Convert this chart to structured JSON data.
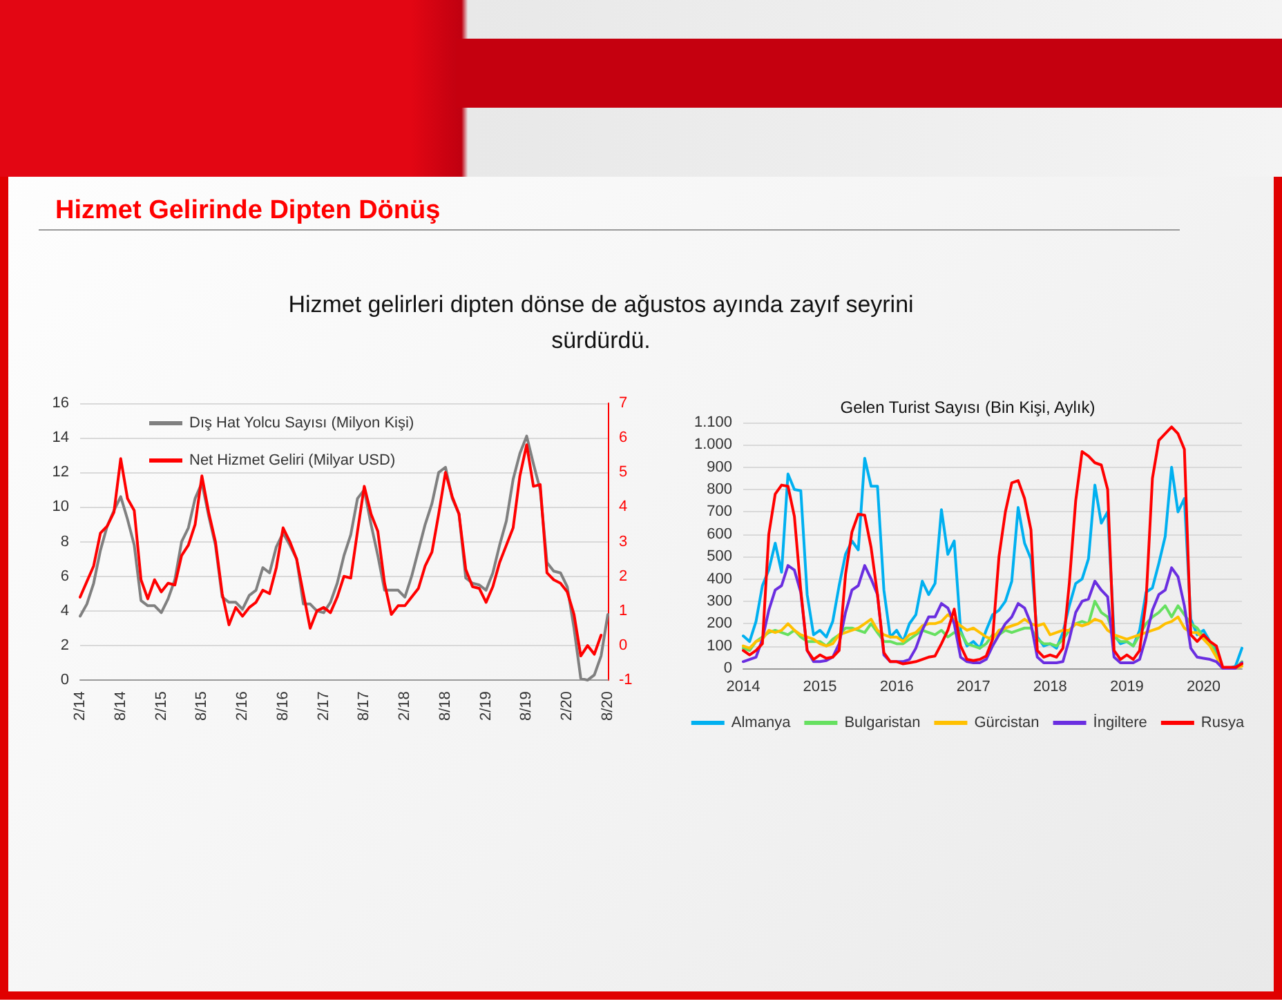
{
  "chart_data": [
    {
      "type": "line",
      "annotations": [
        "Hizmet Gelirinde Dipten Dönüş",
        "Hizmet gelirleri dipten dönse de ağustos ayında zayıf seyrini sürdürdü."
      ],
      "categories": [
        "2/14",
        null,
        null,
        null,
        null,
        null,
        "8/14",
        null,
        null,
        null,
        null,
        null,
        "2/15",
        null,
        null,
        null,
        null,
        null,
        "8/15",
        null,
        null,
        null,
        null,
        null,
        "2/16",
        null,
        null,
        null,
        null,
        null,
        "8/16",
        null,
        null,
        null,
        null,
        null,
        "2/17",
        null,
        null,
        null,
        null,
        null,
        "8/17",
        null,
        null,
        null,
        null,
        null,
        "2/18",
        null,
        null,
        null,
        null,
        null,
        "8/18",
        null,
        null,
        null,
        null,
        null,
        "2/19",
        null,
        null,
        null,
        null,
        null,
        "8/19",
        null,
        null,
        null,
        null,
        null,
        "2/20",
        null,
        null,
        null,
        null,
        null,
        "8/20"
      ],
      "series": [
        {
          "name": "Dış Hat Yolcu Sayısı (Milyon Kişi)",
          "color": "#808080",
          "values": [
            3.7,
            4.4,
            5.6,
            7.5,
            8.9,
            9.8,
            10.6,
            9.3,
            7.8,
            4.6,
            4.3,
            4.3,
            3.9,
            4.7,
            5.8,
            8.0,
            8.8,
            10.5,
            11.4,
            9.5,
            7.8,
            4.8,
            4.5,
            4.5,
            4.1,
            4.9,
            5.2,
            6.5,
            6.2,
            7.7,
            8.5,
            7.8,
            7.0,
            4.4,
            4.4,
            4.0,
            3.9,
            4.5,
            5.6,
            7.2,
            8.4,
            10.5,
            11.0,
            9.0,
            7.2,
            5.2,
            5.2,
            5.2,
            4.8,
            6.0,
            7.5,
            9.0,
            10.2,
            12.0,
            12.3,
            10.5,
            9.6,
            5.9,
            5.6,
            5.5,
            5.2,
            6.2,
            7.8,
            9.2,
            11.6,
            13.1,
            14.1,
            12.5,
            11.0,
            6.8,
            6.3,
            6.2,
            5.4,
            3.0,
            0.1,
            0.0,
            0.3,
            1.4,
            3.8
          ]
        },
        {
          "name": "Net Hizmet Geliri (Milyar USD)",
          "color": "#ff0000",
          "axis": "y2",
          "values": [
            1.4,
            1.85,
            2.3,
            3.25,
            3.45,
            3.85,
            5.4,
            4.25,
            3.9,
            1.9,
            1.35,
            1.9,
            1.55,
            1.8,
            1.75,
            2.6,
            2.9,
            3.5,
            4.9,
            3.85,
            3.0,
            1.5,
            0.6,
            1.1,
            0.85,
            1.1,
            1.25,
            1.6,
            1.5,
            2.25,
            3.4,
            3.0,
            2.5,
            1.5,
            0.5,
            1.0,
            1.1,
            0.95,
            1.4,
            2.0,
            1.95,
            3.3,
            4.6,
            3.8,
            3.3,
            1.8,
            0.9,
            1.15,
            1.15,
            1.4,
            1.65,
            2.3,
            2.7,
            3.8,
            5.0,
            4.3,
            3.8,
            2.2,
            1.7,
            1.65,
            1.25,
            1.7,
            2.4,
            2.9,
            3.4,
            4.9,
            5.8,
            4.6,
            4.65,
            2.1,
            1.9,
            1.8,
            1.55,
            0.9,
            -0.3,
            0.0,
            -0.25,
            0.3,
            null
          ]
        }
      ],
      "ylim": [
        0,
        16
      ],
      "yticks": [
        0,
        2,
        4,
        6,
        8,
        10,
        12,
        14,
        16
      ],
      "y2lim": [
        -1,
        7
      ],
      "y2ticks": [
        -1,
        0,
        1,
        2,
        3,
        4,
        5,
        6,
        7
      ],
      "grid": "y",
      "legend": "top left",
      "marker": "none",
      "line_style": "solid"
    },
    {
      "type": "line",
      "title": "Gelen Turist Sayısı (Bin Kişi, Aylık)",
      "categories": [
        "2014",
        null,
        null,
        null,
        null,
        null,
        null,
        null,
        null,
        null,
        null,
        null,
        "2015",
        null,
        null,
        null,
        null,
        null,
        null,
        null,
        null,
        null,
        null,
        null,
        "2016",
        null,
        null,
        null,
        null,
        null,
        null,
        null,
        null,
        null,
        null,
        null,
        "2017",
        null,
        null,
        null,
        null,
        null,
        null,
        null,
        null,
        null,
        null,
        null,
        "2018",
        null,
        null,
        null,
        null,
        null,
        null,
        null,
        null,
        null,
        null,
        null,
        "2019",
        null,
        null,
        null,
        null,
        null,
        null,
        null,
        null,
        null,
        null,
        null,
        "2020",
        null,
        null,
        null,
        null,
        null,
        null
      ],
      "series": [
        {
          "name": "Almanya",
          "color": "#00b0f0",
          "values": [
            145,
            120,
            210,
            370,
            440,
            560,
            430,
            870,
            800,
            795,
            330,
            150,
            170,
            140,
            210,
            370,
            510,
            570,
            530,
            940,
            815,
            815,
            350,
            140,
            170,
            120,
            200,
            240,
            390,
            330,
            380,
            710,
            510,
            570,
            170,
            100,
            120,
            90,
            170,
            240,
            260,
            300,
            390,
            720,
            560,
            490,
            140,
            100,
            110,
            90,
            160,
            280,
            380,
            400,
            490,
            820,
            650,
            700,
            150,
            110,
            120,
            100,
            170,
            340,
            360,
            470,
            590,
            900,
            700,
            760,
            220,
            150,
            170,
            120,
            80,
            0,
            0,
            10,
            90
          ]
        },
        {
          "name": "Bulgaristan",
          "color": "#66e060",
          "values": [
            90,
            80,
            120,
            140,
            160,
            170,
            160,
            150,
            170,
            140,
            120,
            120,
            120,
            100,
            130,
            150,
            180,
            180,
            170,
            160,
            200,
            160,
            120,
            120,
            110,
            110,
            130,
            150,
            170,
            160,
            150,
            170,
            140,
            160,
            160,
            110,
            100,
            90,
            110,
            150,
            150,
            170,
            160,
            170,
            180,
            180,
            130,
            110,
            110,
            100,
            130,
            170,
            200,
            210,
            200,
            300,
            250,
            230,
            140,
            120,
            120,
            100,
            150,
            200,
            230,
            250,
            280,
            230,
            280,
            240,
            200,
            180,
            140,
            120,
            60,
            0,
            0,
            0,
            30
          ]
        },
        {
          "name": "Gürcistan",
          "color": "#ffc000",
          "values": [
            100,
            90,
            120,
            130,
            170,
            160,
            170,
            200,
            170,
            150,
            140,
            130,
            110,
            100,
            110,
            150,
            160,
            170,
            180,
            200,
            220,
            170,
            150,
            140,
            140,
            120,
            150,
            160,
            190,
            200,
            200,
            210,
            240,
            220,
            190,
            170,
            180,
            160,
            140,
            130,
            170,
            180,
            190,
            200,
            220,
            200,
            190,
            200,
            150,
            160,
            170,
            170,
            200,
            190,
            200,
            220,
            210,
            170,
            150,
            140,
            130,
            140,
            150,
            160,
            170,
            180,
            200,
            210,
            230,
            180,
            160,
            160,
            130,
            100,
            50,
            0,
            0,
            0,
            10
          ]
        },
        {
          "name": "İngiltere",
          "color": "#6a2ee0",
          "values": [
            30,
            40,
            50,
            130,
            260,
            350,
            370,
            460,
            440,
            340,
            80,
            30,
            30,
            35,
            50,
            110,
            250,
            350,
            370,
            460,
            400,
            330,
            60,
            30,
            30,
            30,
            40,
            90,
            170,
            230,
            230,
            290,
            270,
            200,
            50,
            30,
            25,
            25,
            40,
            100,
            150,
            200,
            230,
            290,
            270,
            200,
            50,
            25,
            25,
            25,
            30,
            130,
            250,
            300,
            310,
            390,
            350,
            320,
            50,
            25,
            25,
            25,
            40,
            140,
            260,
            330,
            350,
            450,
            410,
            280,
            90,
            50,
            45,
            40,
            30,
            0,
            0,
            0,
            25
          ]
        },
        {
          "name": "Rusya",
          "color": "#ff0000",
          "values": [
            80,
            60,
            80,
            110,
            600,
            780,
            820,
            815,
            680,
            350,
            80,
            40,
            60,
            45,
            50,
            80,
            420,
            610,
            690,
            685,
            540,
            330,
            70,
            30,
            30,
            20,
            25,
            30,
            40,
            50,
            55,
            110,
            170,
            265,
            100,
            40,
            35,
            40,
            55,
            130,
            500,
            700,
            830,
            840,
            760,
            620,
            80,
            50,
            60,
            50,
            90,
            380,
            750,
            970,
            950,
            920,
            910,
            800,
            80,
            40,
            60,
            40,
            80,
            300,
            850,
            1020,
            1050,
            1080,
            1050,
            980,
            150,
            120,
            150,
            120,
            100,
            5,
            5,
            5,
            20
          ]
        }
      ],
      "ylim": [
        0,
        1100
      ],
      "yticks": [
        0,
        100,
        200,
        300,
        400,
        500,
        600,
        700,
        800,
        900,
        {
          "value": 1000,
          "label": "1.000"
        },
        {
          "value": 1100,
          "label": "1.100"
        }
      ],
      "grid": "y",
      "legend": "bottom",
      "marker": "none",
      "line_style": "solid"
    }
  ]
}
